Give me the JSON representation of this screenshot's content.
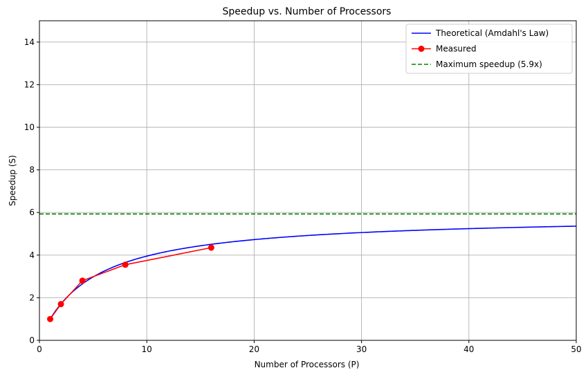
{
  "chart_data": {
    "type": "line",
    "title": "Speedup vs. Number of Processors",
    "xlabel": "Number of Processors (P)",
    "ylabel": "Speedup (S)",
    "xlim": [
      0,
      50
    ],
    "ylim": [
      0,
      15
    ],
    "xticks": [
      0,
      10,
      20,
      30,
      40,
      50
    ],
    "yticks": [
      0,
      2,
      4,
      6,
      8,
      10,
      12,
      14
    ],
    "grid": true,
    "legend_position": "top-right",
    "series": [
      {
        "name": "Theoretical (Amdahl's Law)",
        "kind": "amdahl-curve",
        "serial_fraction": 0.17,
        "x_range": [
          1,
          50
        ],
        "color": "#0000ff",
        "style": "solid"
      },
      {
        "name": "Measured",
        "kind": "points",
        "x": [
          1,
          2,
          4,
          8,
          16
        ],
        "y": [
          1.0,
          1.7,
          2.8,
          3.55,
          4.35
        ],
        "color": "#ff0000",
        "style": "solid",
        "marker": "circle"
      },
      {
        "name": "Maximum speedup (5.9x)",
        "kind": "hline",
        "y": 5.93,
        "color": "#008000",
        "style": "dashed"
      }
    ]
  }
}
